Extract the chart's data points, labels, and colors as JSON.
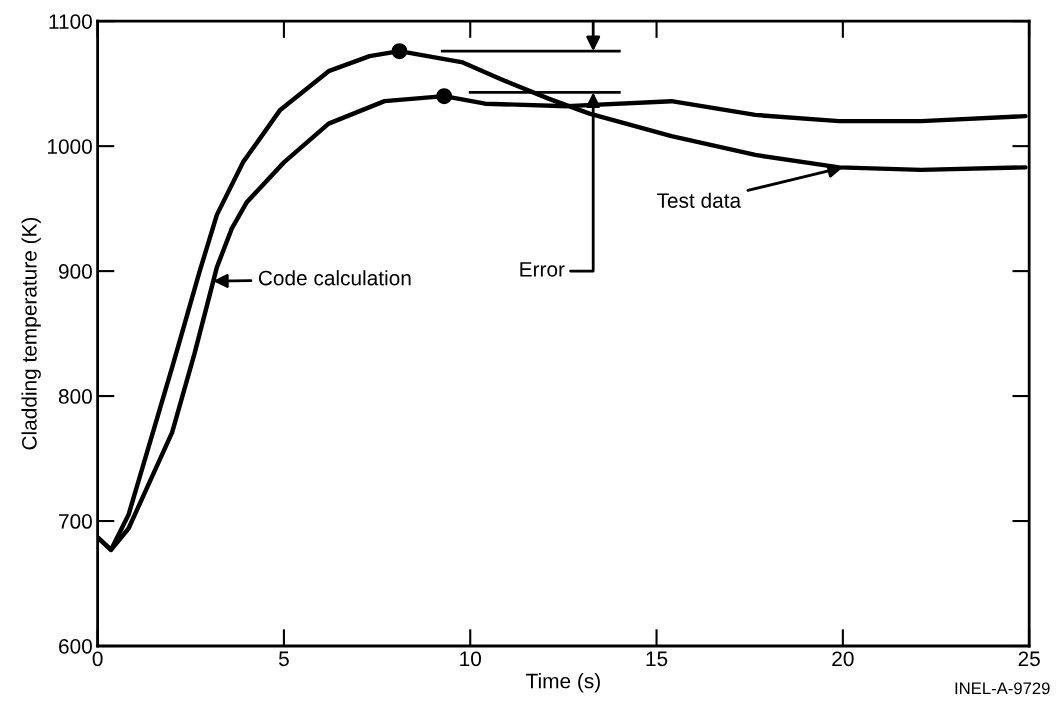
{
  "chart_data": {
    "type": "line",
    "xlabel": "Time (s)",
    "ylabel": "Cladding temperature (K)",
    "xlim": [
      0,
      25
    ],
    "ylim": [
      600,
      1100
    ],
    "xticks": [
      0,
      5,
      10,
      15,
      20,
      25
    ],
    "yticks": [
      600,
      700,
      800,
      900,
      1000,
      1100
    ],
    "grid": false,
    "legend": false,
    "marker": "none",
    "line_style": "solid",
    "series": [
      {
        "color": "#000000",
        "x": [
          0,
          0.36,
          0.83,
          2.0,
          2.74,
          3.2,
          3.9,
          4.9,
          6.2,
          7.3,
          8.1,
          9.8,
          10.95,
          12.1,
          13.2,
          15.4,
          17.65,
          19.9,
          22.1,
          24.9
        ],
        "values": [
          687,
          677,
          705,
          823,
          900,
          945,
          987,
          1029,
          1060,
          1072,
          1076,
          1067,
          1052,
          1038,
          1026,
          1008,
          993,
          983,
          981,
          983
        ]
      },
      {
        "color": "#000000",
        "x": [
          0,
          0.36,
          0.83,
          2.0,
          2.6,
          3.2,
          3.6,
          4.0,
          5.0,
          6.2,
          7.7,
          9.3,
          10.4,
          12.6,
          15.4,
          17.65,
          19.9,
          22.1,
          24.9
        ],
        "values": [
          687,
          677,
          694,
          771,
          834,
          903,
          934,
          955,
          987,
          1018,
          1036,
          1040,
          1034,
          1032,
          1036,
          1025,
          1020,
          1020,
          1024
        ]
      },
      {
        "type": "scatter",
        "color": "#000000",
        "marker": "circle",
        "x": [
          8.1,
          9.3
        ],
        "values": [
          1076,
          1040
        ]
      }
    ],
    "ref_lines": [
      {
        "axis": "y",
        "value": 1076,
        "color": "#000000"
      },
      {
        "axis": "y",
        "value": 1043,
        "color": "#000000"
      }
    ],
    "annotations": [
      {
        "text": "Code calculation",
        "x": 3.1,
        "y": 892
      },
      {
        "text": "Test data",
        "x": 20,
        "y": 983
      },
      {
        "text": "Error",
        "x": 13.3,
        "y": 1043
      },
      "INEL-A-9729"
    ]
  }
}
